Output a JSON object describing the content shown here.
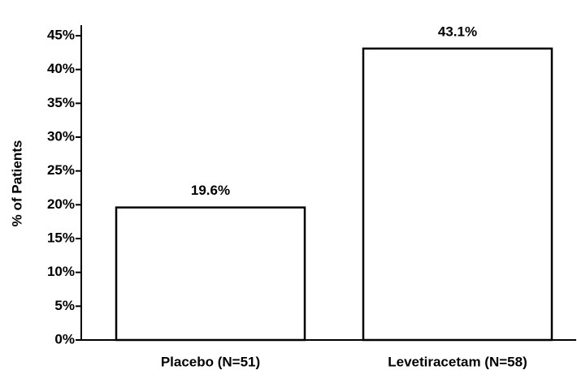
{
  "chart_data": {
    "type": "bar",
    "y_label": "% of Patients",
    "categories": [
      "Placebo (N=51)",
      "Levetiracetam (N=58)"
    ],
    "values": [
      19.6,
      43.1
    ],
    "value_labels": [
      "19.6%",
      "43.1%"
    ],
    "color": "#ffffff",
    "edge_color": "#000000",
    "annotation": "*",
    "ylim": [
      0,
      45
    ],
    "yticks": [
      {
        "value": 0,
        "label": "0%"
      },
      {
        "value": 5,
        "label": "5%"
      },
      {
        "value": 10,
        "label": "10%"
      },
      {
        "value": 15,
        "label": "15%"
      },
      {
        "value": 20,
        "label": "20%"
      },
      {
        "value": 25,
        "label": "25%"
      },
      {
        "value": 30,
        "label": "30%"
      },
      {
        "value": 35,
        "label": "35%"
      },
      {
        "value": 40,
        "label": "40%"
      },
      {
        "value": 45,
        "label": "45%"
      }
    ],
    "grid": false
  }
}
